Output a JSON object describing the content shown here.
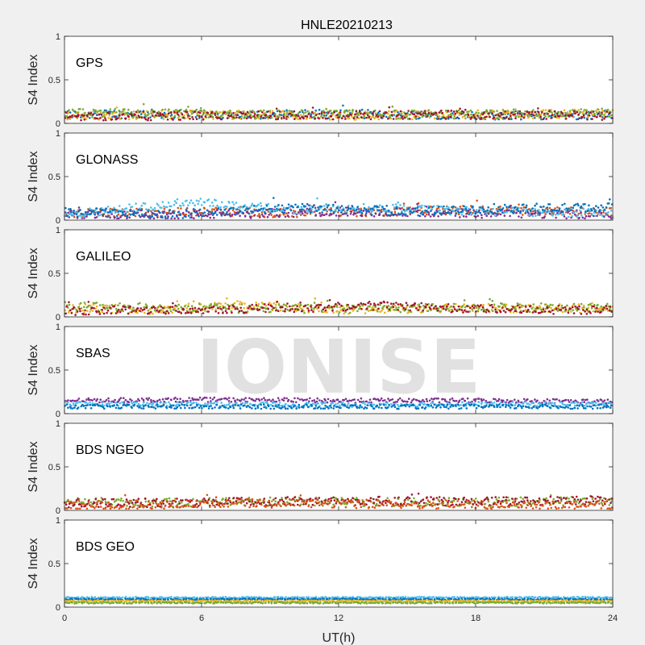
{
  "title": "HNLE20210213",
  "xlabel": "UT(h)",
  "watermark": "IONISE",
  "series_colors": [
    "#0072bd",
    "#d95319",
    "#edb120",
    "#7e2f8e",
    "#77ac30",
    "#4dbeee",
    "#a2142f"
  ],
  "chart_data": [
    {
      "type": "scatter",
      "name": "GPS",
      "ylabel": "S4 Index",
      "xlim": [
        0,
        24
      ],
      "ylim": [
        0,
        1
      ],
      "xticks": [
        0,
        6,
        12,
        18,
        24
      ],
      "yticks": [
        0,
        0.5,
        1
      ],
      "series": [
        {
          "values": [
            [
              0,
              0.1
            ],
            [
              4,
              0.11
            ],
            [
              8,
              0.1
            ],
            [
              12,
              0.11
            ],
            [
              16,
              0.1
            ],
            [
              20,
              0.09
            ],
            [
              24,
              0.1
            ]
          ]
        },
        {
          "values": [
            [
              0,
              0.09
            ],
            [
              6,
              0.1
            ],
            [
              12,
              0.09
            ],
            [
              18,
              0.1
            ],
            [
              24,
              0.11
            ]
          ]
        },
        {
          "values": [
            [
              0,
              0.12
            ],
            [
              5,
              0.11
            ],
            [
              10,
              0.1
            ],
            [
              15,
              0.1
            ],
            [
              20,
              0.11
            ],
            [
              24,
              0.12
            ]
          ]
        },
        {
          "values": [
            [
              0,
              0.08
            ],
            [
              8,
              0.09
            ],
            [
              16,
              0.1
            ],
            [
              24,
              0.09
            ]
          ]
        }
      ]
    },
    {
      "type": "scatter",
      "name": "GLONASS",
      "ylabel": "S4 Index",
      "xlim": [
        0,
        24
      ],
      "ylim": [
        0,
        1
      ],
      "xticks": [
        0,
        6,
        12,
        18,
        24
      ],
      "yticks": [
        0,
        0.5,
        1
      ],
      "series": [
        {
          "values": [
            [
              0,
              0.08
            ],
            [
              3,
              0.09
            ],
            [
              6,
              0.1
            ],
            [
              9,
              0.08
            ],
            [
              12,
              0.09
            ],
            [
              15,
              0.1
            ],
            [
              18,
              0.12
            ],
            [
              21,
              0.1
            ],
            [
              24,
              0.09
            ]
          ]
        },
        {
          "values": [
            [
              0,
              0.07
            ],
            [
              4,
              0.06
            ],
            [
              8,
              0.07
            ],
            [
              12,
              0.1
            ],
            [
              16,
              0.08
            ],
            [
              20,
              0.07
            ],
            [
              24,
              0.06
            ]
          ]
        },
        {
          "values": [
            [
              0,
              0.06
            ],
            [
              6,
              0.22
            ],
            [
              7,
              0.18
            ],
            [
              10,
              0.12
            ],
            [
              14,
              0.14
            ],
            [
              18,
              0.1
            ],
            [
              24,
              0.08
            ]
          ]
        },
        {
          "values": [
            [
              0,
              0.09
            ],
            [
              5,
              0.07
            ],
            [
              10,
              0.14
            ],
            [
              15,
              0.1
            ],
            [
              20,
              0.13
            ],
            [
              24,
              0.15
            ]
          ]
        }
      ]
    },
    {
      "type": "scatter",
      "name": "GALILEO",
      "ylabel": "S4 Index",
      "xlim": [
        0,
        24
      ],
      "ylim": [
        0,
        1
      ],
      "xticks": [
        0,
        6,
        12,
        18,
        24
      ],
      "yticks": [
        0,
        0.5,
        1
      ],
      "series": [
        {
          "values": [
            [
              0,
              0.1
            ],
            [
              4,
              0.08
            ],
            [
              8,
              0.14
            ],
            [
              12,
              0.08
            ],
            [
              16,
              0.1
            ],
            [
              20,
              0.1
            ],
            [
              24,
              0.09
            ]
          ]
        },
        {
          "values": [
            [
              0,
              0.12
            ],
            [
              6,
              0.1
            ],
            [
              12,
              0.09
            ],
            [
              18,
              0.11
            ],
            [
              24,
              0.1
            ]
          ]
        },
        {
          "values": [
            [
              0,
              0.07
            ],
            [
              6,
              0.09
            ],
            [
              10,
              0.1
            ],
            [
              14,
              0.13
            ],
            [
              18,
              0.09
            ],
            [
              24,
              0.08
            ]
          ]
        }
      ]
    },
    {
      "type": "scatter",
      "name": "SBAS",
      "ylabel": "S4 Index",
      "xlim": [
        0,
        24
      ],
      "ylim": [
        0,
        1
      ],
      "xticks": [
        0,
        6,
        12,
        18,
        24
      ],
      "yticks": [
        0,
        0.5,
        1
      ],
      "series": [
        {
          "values": [
            [
              0,
              0.15
            ],
            [
              6,
              0.16
            ],
            [
              12,
              0.15
            ],
            [
              18,
              0.15
            ],
            [
              24,
              0.14
            ]
          ]
        },
        {
          "values": [
            [
              0,
              0.11
            ],
            [
              6,
              0.11
            ],
            [
              12,
              0.1
            ],
            [
              18,
              0.11
            ],
            [
              24,
              0.11
            ]
          ]
        },
        {
          "values": [
            [
              0,
              0.08
            ],
            [
              6,
              0.08
            ],
            [
              12,
              0.08
            ],
            [
              18,
              0.08
            ],
            [
              24,
              0.08
            ]
          ]
        }
      ]
    },
    {
      "type": "scatter",
      "name": "BDS NGEO",
      "ylabel": "S4 Index",
      "xlim": [
        0,
        24
      ],
      "ylim": [
        0,
        1
      ],
      "xticks": [
        0,
        6,
        12,
        18,
        24
      ],
      "yticks": [
        0,
        0.5,
        1
      ],
      "series": [
        {
          "values": [
            [
              0,
              0.1
            ],
            [
              4,
              0.09
            ],
            [
              8,
              0.1
            ],
            [
              12,
              0.1
            ],
            [
              16,
              0.09
            ],
            [
              20,
              0.1
            ],
            [
              24,
              0.11
            ]
          ]
        },
        {
          "values": [
            [
              0,
              0.08
            ],
            [
              6,
              0.09
            ],
            [
              12,
              0.11
            ],
            [
              18,
              0.1
            ],
            [
              24,
              0.12
            ]
          ]
        },
        {
          "values": [
            [
              0,
              0.06
            ],
            [
              8,
              0.08
            ],
            [
              16,
              0.07
            ],
            [
              24,
              0.06
            ]
          ]
        }
      ]
    },
    {
      "type": "scatter",
      "name": "BDS GEO",
      "ylabel": "S4 Index",
      "xlim": [
        0,
        24
      ],
      "ylim": [
        0,
        1
      ],
      "xticks": [
        0,
        6,
        12,
        18,
        24
      ],
      "yticks": [
        0,
        0.5,
        1
      ],
      "series": [
        {
          "values": [
            [
              0,
              0.11
            ],
            [
              12,
              0.11
            ],
            [
              24,
              0.11
            ]
          ]
        },
        {
          "values": [
            [
              0,
              0.09
            ],
            [
              12,
              0.09
            ],
            [
              24,
              0.09
            ]
          ]
        },
        {
          "values": [
            [
              0,
              0.07
            ],
            [
              12,
              0.07
            ],
            [
              24,
              0.07
            ]
          ]
        },
        {
          "values": [
            [
              0,
              0.05
            ],
            [
              12,
              0.05
            ],
            [
              24,
              0.05
            ]
          ]
        }
      ]
    }
  ]
}
